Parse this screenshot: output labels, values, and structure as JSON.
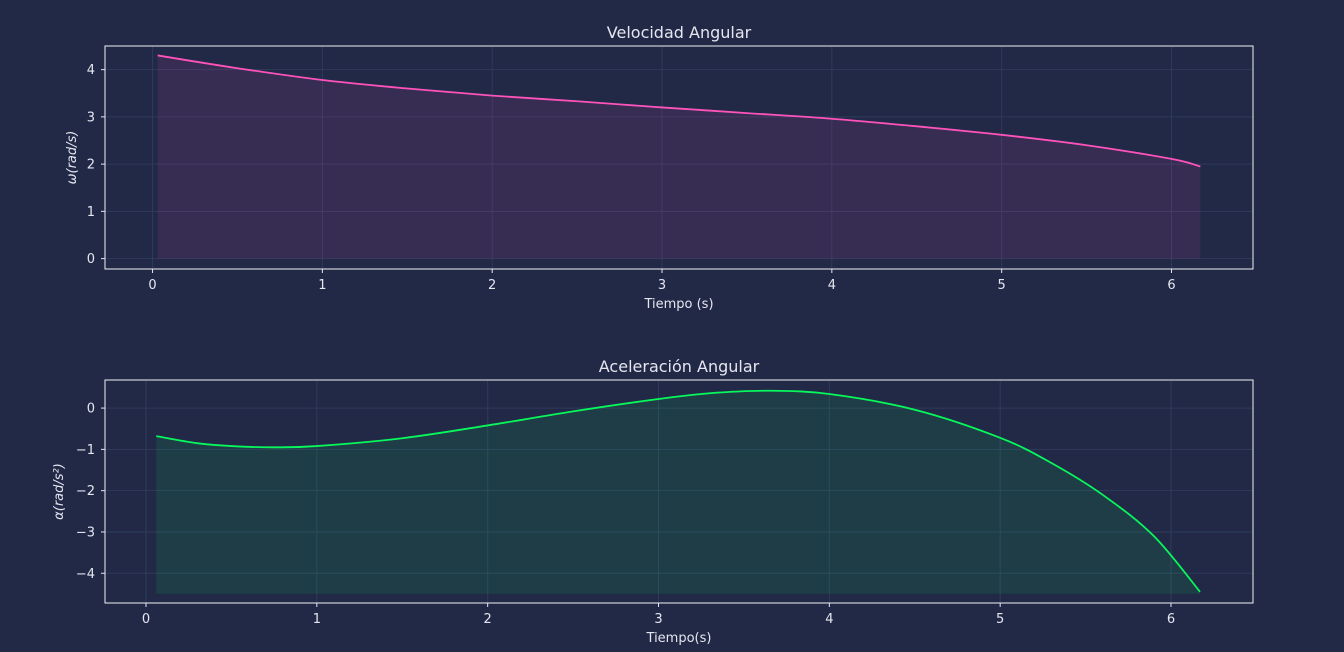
{
  "colors": {
    "background": "#212946",
    "grid": "#2f3a5c",
    "text": "#e6e6f0",
    "frame": "#f2f2f2"
  },
  "chart_data": [
    {
      "type": "area",
      "title": "Velocidad Angular",
      "xlabel": "Tiempo (s)",
      "ylabel": "ω(rad/s)",
      "xlim": [
        -0.28,
        6.48
      ],
      "ylim": [
        -0.22,
        4.5
      ],
      "xticks": [
        0,
        1,
        2,
        3,
        4,
        5,
        6
      ],
      "xtick_labels": [
        "0",
        "1",
        "2",
        "3",
        "4",
        "5",
        "6"
      ],
      "yticks": [
        0,
        1,
        2,
        3,
        4
      ],
      "ytick_labels": [
        "0",
        "1",
        "2",
        "3",
        "4"
      ],
      "grid": true,
      "fill_baseline": 0,
      "series": [
        {
          "color": "#fe53bb",
          "fill_color": "#fe53bb",
          "x": [
            0.03,
            0.5,
            1.0,
            1.5,
            2.0,
            2.5,
            3.0,
            3.5,
            4.0,
            4.5,
            5.0,
            5.5,
            6.0,
            6.17
          ],
          "y": [
            4.3,
            4.03,
            3.78,
            3.6,
            3.45,
            3.33,
            3.2,
            3.08,
            2.96,
            2.8,
            2.62,
            2.4,
            2.11,
            1.95
          ]
        }
      ]
    },
    {
      "type": "area",
      "title": "Aceleración Angular",
      "xlabel": "Tiempo(s)",
      "ylabel": "α(rad/s²)",
      "xlim": [
        -0.24,
        6.48
      ],
      "ylim": [
        -4.72,
        0.68
      ],
      "xticks": [
        0,
        1,
        2,
        3,
        4,
        5,
        6
      ],
      "xtick_labels": [
        "0",
        "1",
        "2",
        "3",
        "4",
        "5",
        "6"
      ],
      "yticks": [
        0,
        -1,
        -2,
        -3,
        -4
      ],
      "ytick_labels": [
        "0",
        "−1",
        "−2",
        "−3",
        "−4"
      ],
      "grid": true,
      "fill_baseline": -4.5,
      "series": [
        {
          "color": "#08f75b",
          "fill_color": "#08f75b",
          "x": [
            0.06,
            0.3,
            0.5,
            0.75,
            1.0,
            1.5,
            2.0,
            2.5,
            3.0,
            3.3,
            3.65,
            4.0,
            4.5,
            5.0,
            5.3,
            5.6,
            5.9,
            6.17
          ],
          "y": [
            -0.68,
            -0.85,
            -0.92,
            -0.95,
            -0.92,
            -0.73,
            -0.42,
            -0.08,
            0.22,
            0.36,
            0.42,
            0.34,
            -0.04,
            -0.72,
            -1.33,
            -2.1,
            -3.1,
            -4.45
          ]
        }
      ]
    }
  ]
}
